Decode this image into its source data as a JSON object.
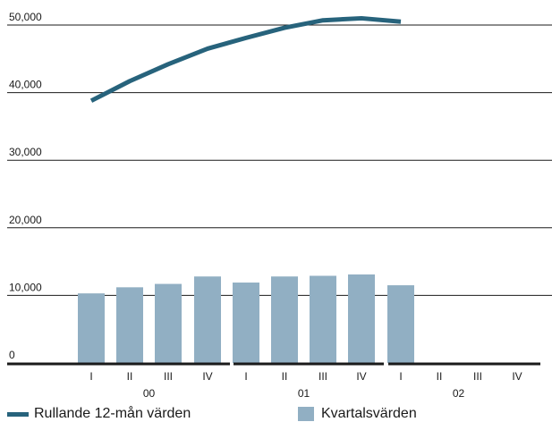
{
  "chart_data": {
    "type": "bar+line",
    "y_ticks": [
      "50,000",
      "40,000",
      "30,000",
      "20,000",
      "10,000",
      "0"
    ],
    "ylim": [
      0,
      50000
    ],
    "categories": [
      "I",
      "II",
      "III",
      "IV",
      "I",
      "II",
      "III",
      "IV",
      "I",
      "II",
      "III",
      "IV"
    ],
    "years": [
      "00",
      "01",
      "02"
    ],
    "series": [
      {
        "name": "Kvartalsvärden",
        "type": "bar",
        "color": "#91afc3",
        "values": [
          10300,
          11200,
          11700,
          12800,
          11900,
          12800,
          12900,
          13100,
          11500,
          null,
          null,
          null
        ]
      },
      {
        "name": "Rullande 12-mån värden",
        "type": "line",
        "color": "#27637c",
        "values": [
          38800,
          41700,
          44200,
          46500,
          48100,
          49600,
          50700,
          51000,
          50500,
          null,
          null,
          null
        ]
      }
    ],
    "grid": true
  },
  "legend": {
    "line_label": "Rullande 12-mån värden",
    "bar_label": "Kvartalsvärden"
  },
  "colors": {
    "line": "#27637c",
    "bar": "#91afc3",
    "grid": "#1a1a1a"
  }
}
